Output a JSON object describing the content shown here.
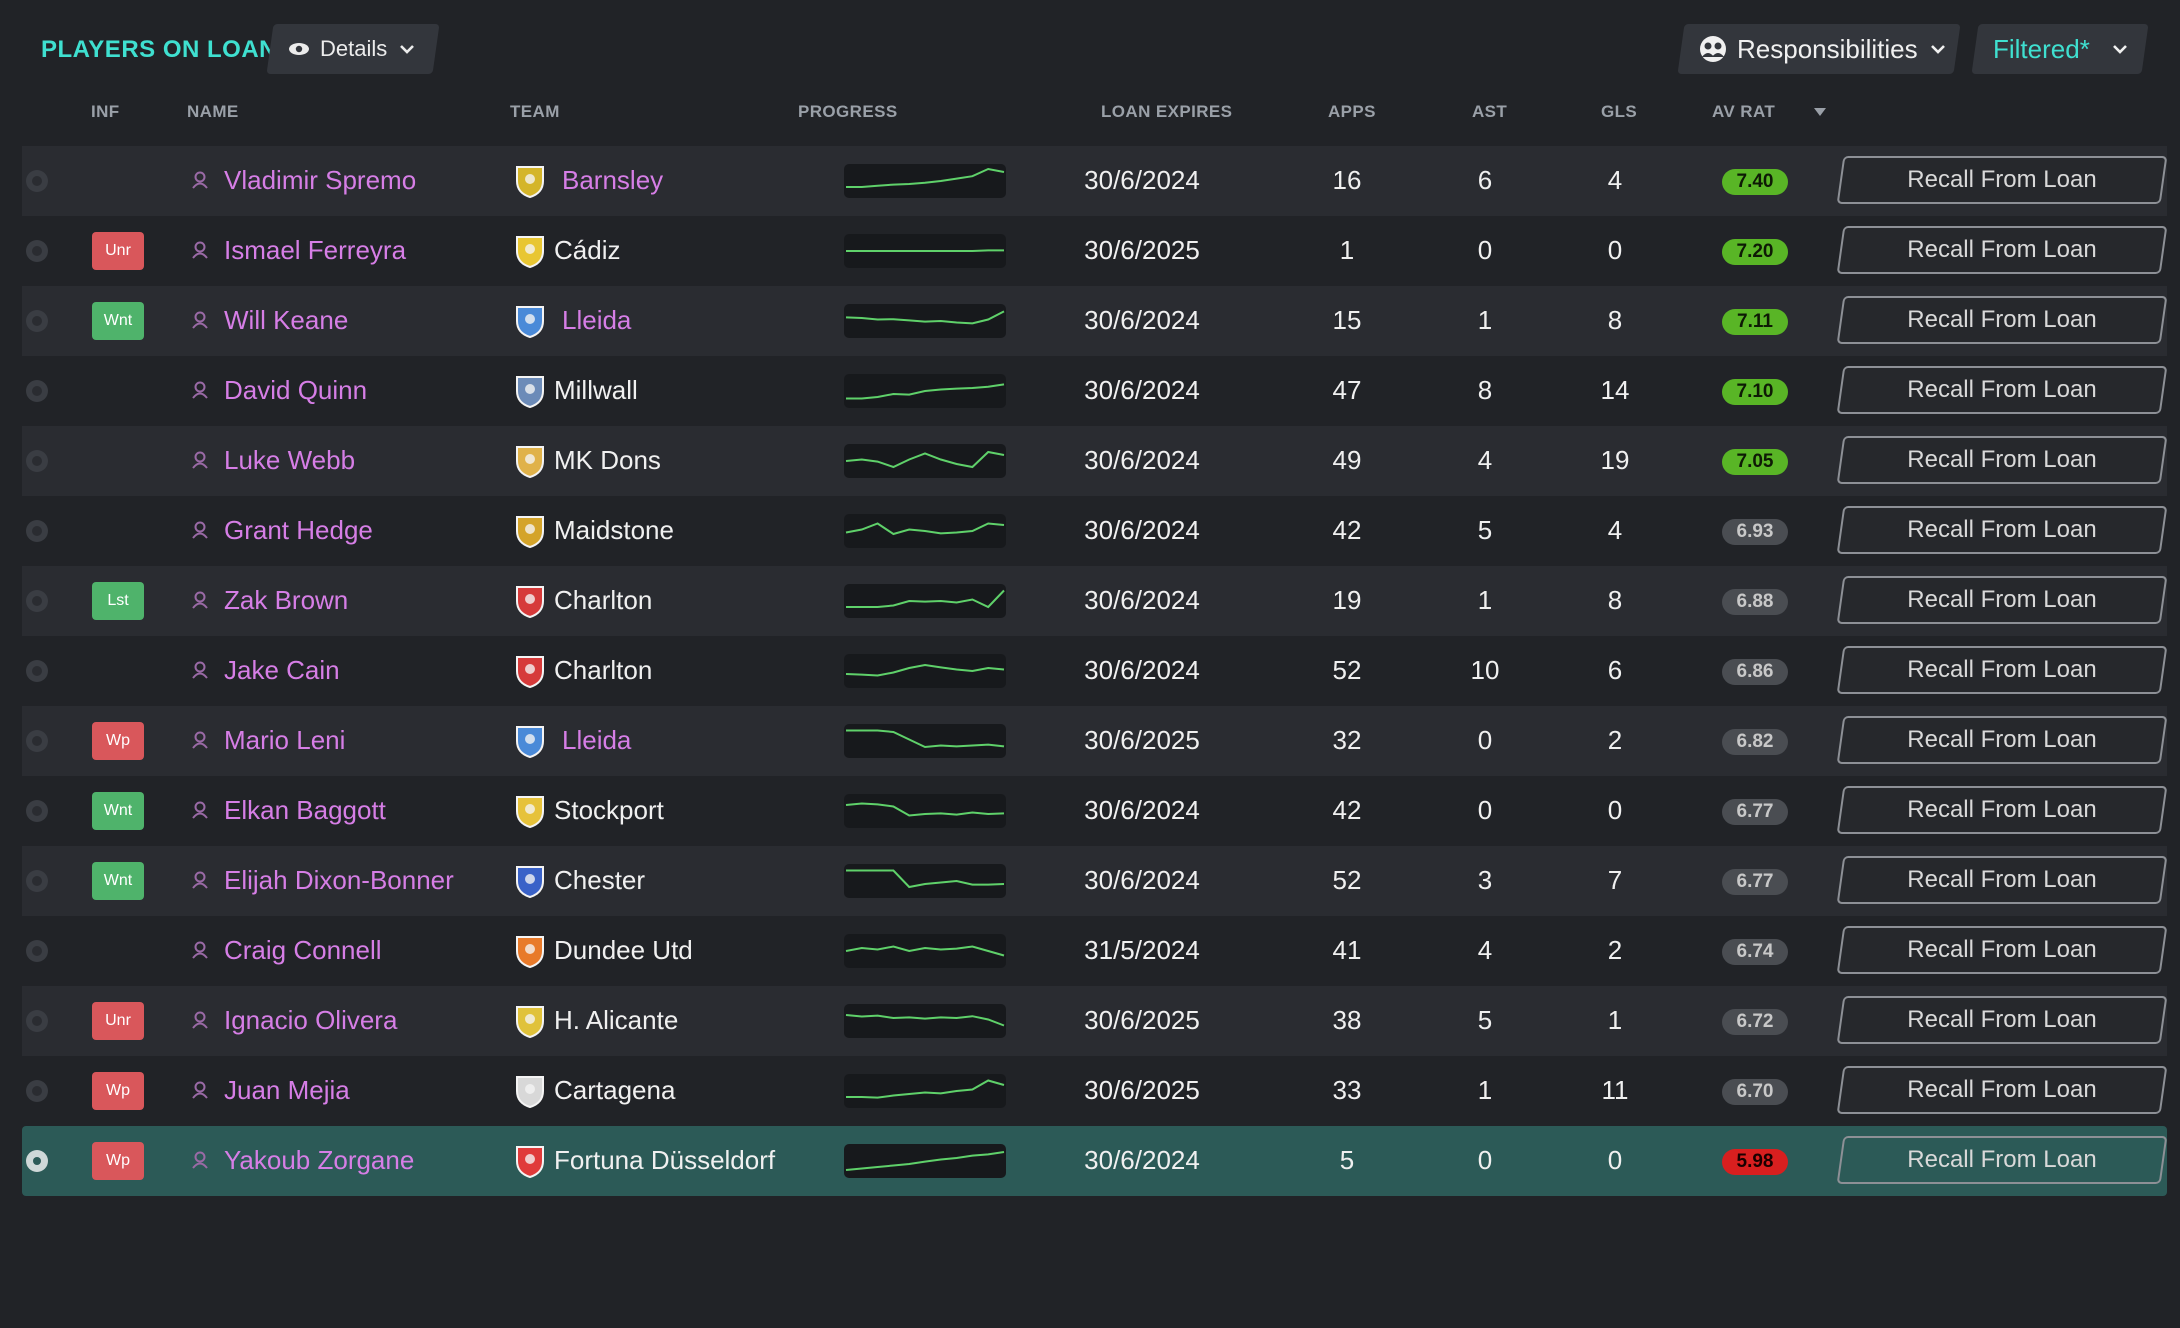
{
  "header": {
    "title": "PLAYERS ON LOAN",
    "details_label": "Details",
    "responsibilities_label": "Responsibilities",
    "filter_label": "Filtered*"
  },
  "columns": {
    "inf": "INF",
    "name": "NAME",
    "team": "TEAM",
    "progress": "PROGRESS",
    "loan_expires": "LOAN EXPIRES",
    "apps": "APPS",
    "ast": "AST",
    "gls": "GLS",
    "av_rat": "AV RAT"
  },
  "recall_label": "Recall From Loan",
  "colors": {
    "accent": "#3fe0d0",
    "player_link": "#d67ee6",
    "rating_green": "#59b526",
    "rating_grey": "#4a4d52",
    "rating_red": "#d81f1f",
    "badge_red": "#d9575b",
    "badge_green": "#4fb36b",
    "selected_row": "#2c5a57"
  },
  "rows": [
    {
      "inf": "",
      "inf_color": "",
      "name": "Vladimir Spremo",
      "team": "Barnsley",
      "team_link": true,
      "crest": "barnsley-crest",
      "crest_color": "#d4b52a",
      "loan_expires": "30/6/2024",
      "apps": "16",
      "ast": "6",
      "gls": "4",
      "av_rat": "7.40",
      "rating_level": "green",
      "trend": [
        0.3,
        0.3,
        0.34,
        0.38,
        0.4,
        0.44,
        0.5,
        0.58,
        0.66,
        0.9,
        0.8
      ],
      "selected": false
    },
    {
      "inf": "Unr",
      "inf_color": "red",
      "name": "Ismael Ferreyra",
      "team": "Cádiz",
      "team_link": false,
      "crest": "cadiz-crest",
      "crest_color": "#e8c632",
      "loan_expires": "30/6/2025",
      "apps": "1",
      "ast": "0",
      "gls": "0",
      "av_rat": "7.20",
      "rating_level": "green",
      "trend": [
        0.5,
        0.5,
        0.5,
        0.5,
        0.5,
        0.5,
        0.5,
        0.5,
        0.5,
        0.52,
        0.52
      ],
      "selected": false
    },
    {
      "inf": "Wnt",
      "inf_color": "green",
      "name": "Will Keane",
      "team": "Lleida",
      "team_link": true,
      "crest": "lleida-crest",
      "crest_color": "#4a8ad8",
      "loan_expires": "30/6/2024",
      "apps": "15",
      "ast": "1",
      "gls": "8",
      "av_rat": "7.11",
      "rating_level": "green",
      "trend": [
        0.62,
        0.6,
        0.55,
        0.56,
        0.52,
        0.48,
        0.5,
        0.45,
        0.42,
        0.55,
        0.82
      ],
      "selected": false
    },
    {
      "inf": "",
      "inf_color": "",
      "name": "David Quinn",
      "team": "Millwall",
      "team_link": false,
      "crest": "millwall-crest",
      "crest_color": "#6c8bb8",
      "loan_expires": "30/6/2024",
      "apps": "47",
      "ast": "8",
      "gls": "14",
      "av_rat": "7.10",
      "rating_level": "green",
      "trend": [
        0.25,
        0.25,
        0.3,
        0.4,
        0.38,
        0.5,
        0.55,
        0.58,
        0.6,
        0.64,
        0.72
      ],
      "selected": false
    },
    {
      "inf": "",
      "inf_color": "",
      "name": "Luke Webb",
      "team": "MK Dons",
      "team_link": false,
      "crest": "mkdons-crest",
      "crest_color": "#e0b24a",
      "loan_expires": "30/6/2024",
      "apps": "49",
      "ast": "4",
      "gls": "19",
      "av_rat": "7.05",
      "rating_level": "green",
      "trend": [
        0.5,
        0.55,
        0.48,
        0.3,
        0.55,
        0.75,
        0.55,
        0.4,
        0.3,
        0.8,
        0.7
      ],
      "selected": false
    },
    {
      "inf": "",
      "inf_color": "",
      "name": "Grant Hedge",
      "team": "Maidstone",
      "team_link": false,
      "crest": "maidstone-crest",
      "crest_color": "#d4a42a",
      "loan_expires": "30/6/2024",
      "apps": "42",
      "ast": "5",
      "gls": "4",
      "av_rat": "6.93",
      "rating_level": "grey",
      "trend": [
        0.45,
        0.55,
        0.75,
        0.4,
        0.55,
        0.5,
        0.42,
        0.45,
        0.5,
        0.75,
        0.7
      ],
      "selected": false
    },
    {
      "inf": "Lst",
      "inf_color": "green",
      "name": "Zak Brown",
      "team": "Charlton",
      "team_link": false,
      "crest": "charlton-crest",
      "crest_color": "#d63a3a",
      "loan_expires": "30/6/2024",
      "apps": "19",
      "ast": "1",
      "gls": "8",
      "av_rat": "6.88",
      "rating_level": "grey",
      "trend": [
        0.3,
        0.3,
        0.3,
        0.35,
        0.5,
        0.48,
        0.5,
        0.45,
        0.55,
        0.3,
        0.85
      ],
      "selected": false
    },
    {
      "inf": "",
      "inf_color": "",
      "name": "Jake Cain",
      "team": "Charlton",
      "team_link": false,
      "crest": "charlton-crest",
      "crest_color": "#d63a3a",
      "loan_expires": "30/6/2024",
      "apps": "52",
      "ast": "10",
      "gls": "6",
      "av_rat": "6.86",
      "rating_level": "grey",
      "trend": [
        0.4,
        0.38,
        0.35,
        0.45,
        0.6,
        0.7,
        0.62,
        0.55,
        0.5,
        0.6,
        0.55
      ],
      "selected": false
    },
    {
      "inf": "Wp",
      "inf_color": "red",
      "name": "Mario Leni",
      "team": "Lleida",
      "team_link": true,
      "crest": "lleida-crest",
      "crest_color": "#4a8ad8",
      "loan_expires": "30/6/2025",
      "apps": "32",
      "ast": "0",
      "gls": "2",
      "av_rat": "6.82",
      "rating_level": "grey",
      "trend": [
        0.85,
        0.85,
        0.85,
        0.8,
        0.55,
        0.3,
        0.35,
        0.32,
        0.35,
        0.38,
        0.32
      ],
      "selected": false
    },
    {
      "inf": "Wnt",
      "inf_color": "green",
      "name": "Elkan Baggott",
      "team": "Stockport",
      "team_link": false,
      "crest": "stockport-crest",
      "crest_color": "#e6c23a",
      "loan_expires": "30/6/2024",
      "apps": "42",
      "ast": "0",
      "gls": "0",
      "av_rat": "6.77",
      "rating_level": "grey",
      "trend": [
        0.7,
        0.75,
        0.72,
        0.65,
        0.35,
        0.4,
        0.42,
        0.38,
        0.45,
        0.4,
        0.42
      ],
      "selected": false
    },
    {
      "inf": "Wnt",
      "inf_color": "green",
      "name": "Elijah Dixon-Bonner",
      "team": "Chester",
      "team_link": false,
      "crest": "chester-crest",
      "crest_color": "#3a62c8",
      "loan_expires": "30/6/2024",
      "apps": "52",
      "ast": "3",
      "gls": "7",
      "av_rat": "6.77",
      "rating_level": "grey",
      "trend": [
        0.85,
        0.85,
        0.85,
        0.85,
        0.3,
        0.4,
        0.45,
        0.5,
        0.38,
        0.38,
        0.4
      ],
      "selected": false
    },
    {
      "inf": "",
      "inf_color": "",
      "name": "Craig Connell",
      "team": "Dundee Utd",
      "team_link": false,
      "crest": "dundee-crest",
      "crest_color": "#e87a2a",
      "loan_expires": "31/5/2024",
      "apps": "41",
      "ast": "4",
      "gls": "2",
      "av_rat": "6.74",
      "rating_level": "grey",
      "trend": [
        0.5,
        0.6,
        0.55,
        0.65,
        0.5,
        0.6,
        0.55,
        0.58,
        0.65,
        0.5,
        0.35
      ],
      "selected": false
    },
    {
      "inf": "Unr",
      "inf_color": "red",
      "name": "Ignacio Olivera",
      "team": "H. Alicante",
      "team_link": false,
      "crest": "alicante-crest",
      "crest_color": "#e0c23a",
      "loan_expires": "30/6/2025",
      "apps": "38",
      "ast": "5",
      "gls": "1",
      "av_rat": "6.72",
      "rating_level": "grey",
      "trend": [
        0.7,
        0.65,
        0.68,
        0.6,
        0.62,
        0.58,
        0.62,
        0.6,
        0.66,
        0.55,
        0.35
      ],
      "selected": false
    },
    {
      "inf": "Wp",
      "inf_color": "red",
      "name": "Juan Mejia",
      "team": "Cartagena",
      "team_link": false,
      "crest": "cartagena-crest",
      "crest_color": "#d8d8d8",
      "loan_expires": "30/6/2025",
      "apps": "33",
      "ast": "1",
      "gls": "11",
      "av_rat": "6.70",
      "rating_level": "grey",
      "trend": [
        0.3,
        0.3,
        0.28,
        0.35,
        0.4,
        0.45,
        0.42,
        0.5,
        0.55,
        0.85,
        0.7
      ],
      "selected": false
    },
    {
      "inf": "Wp",
      "inf_color": "red",
      "name": "Yakoub Zorgane",
      "team": "Fortuna Düsseldorf",
      "team_link": false,
      "crest": "fortuna-crest",
      "crest_color": "#e03a3a",
      "loan_expires": "30/6/2024",
      "apps": "5",
      "ast": "0",
      "gls": "0",
      "av_rat": "5.98",
      "rating_level": "red",
      "trend": [
        0.2,
        0.25,
        0.3,
        0.35,
        0.4,
        0.48,
        0.55,
        0.6,
        0.68,
        0.72,
        0.8
      ],
      "selected": true
    }
  ]
}
